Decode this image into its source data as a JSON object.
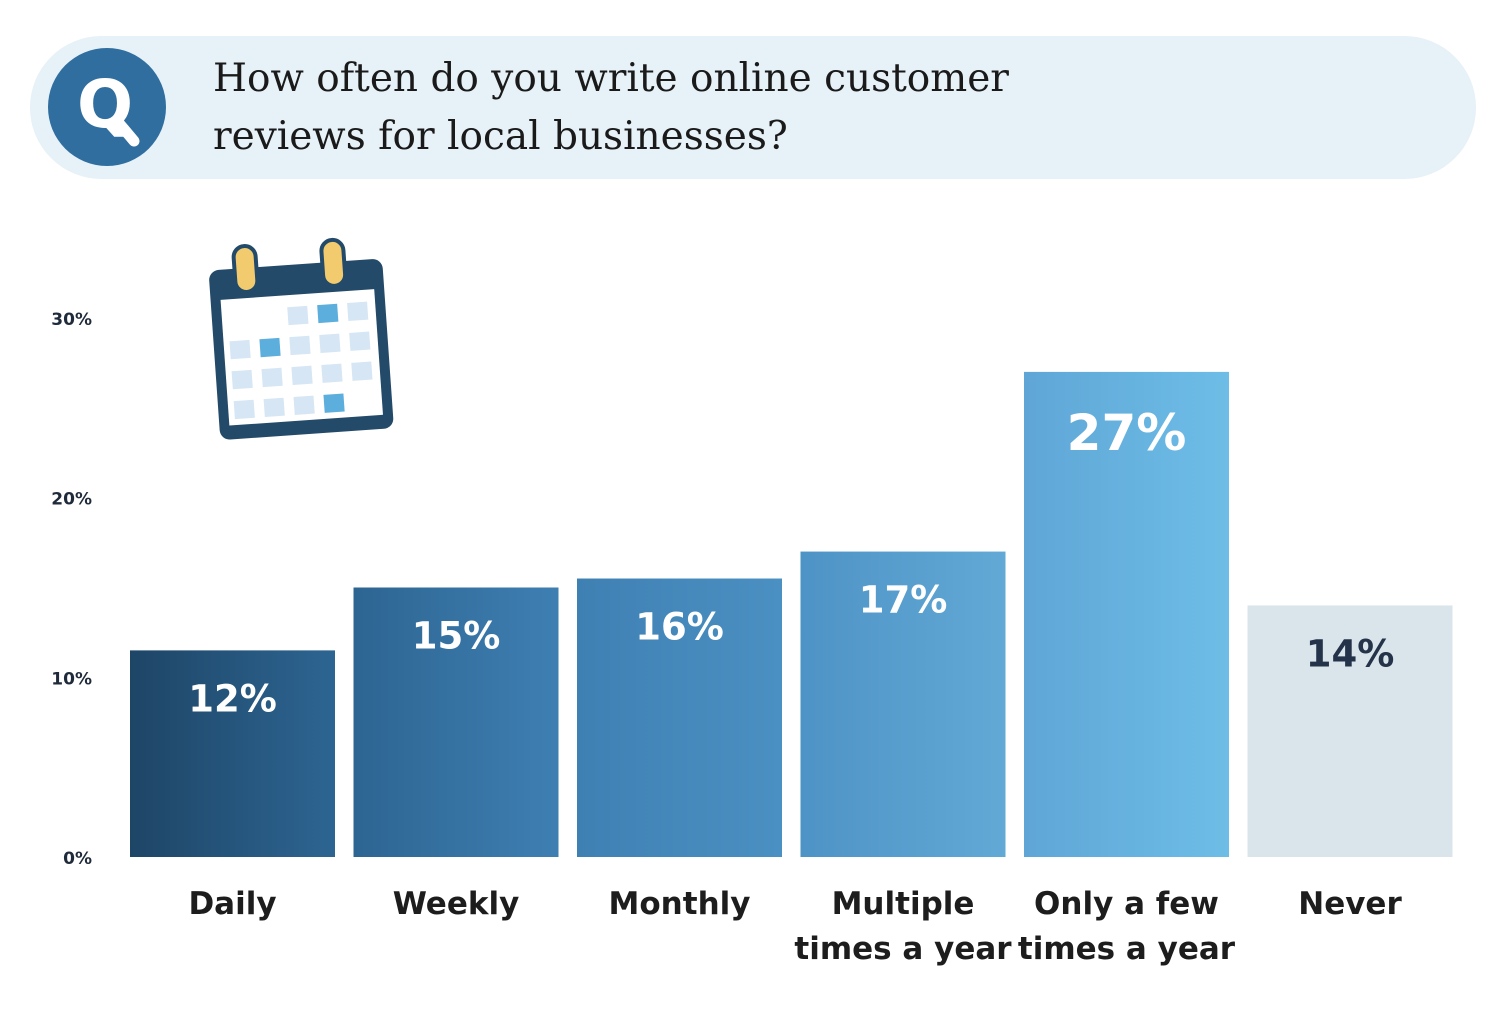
{
  "question": {
    "badge_letter": "Q",
    "lines": [
      "How often do you write online customer",
      "reviews for local businesses?"
    ]
  },
  "icons": {
    "badge": "q-badge-icon",
    "calendar": "calendar-icon"
  },
  "colors": {
    "question_bg": "#e6f1f8",
    "badge": "#2f6e9e",
    "bar_gradient": [
      [
        "#1e4566",
        "#2d6592"
      ],
      [
        "#2d6592",
        "#3e7fb2"
      ],
      [
        "#3f80b3",
        "#4b90c2"
      ],
      [
        "#4e93c5",
        "#62a9d6"
      ],
      [
        "#5fa6d6",
        "#6dbde7"
      ],
      [
        "#d9e4eb",
        "#d9e4eb"
      ]
    ],
    "value_label": [
      "#ffffff",
      "#ffffff",
      "#ffffff",
      "#ffffff",
      "#ffffff",
      "#24324a"
    ]
  },
  "chart_data": {
    "type": "bar",
    "title": "",
    "xlabel": "",
    "ylabel": "",
    "ylim": [
      0,
      30
    ],
    "yticks": [
      "0%",
      "10%",
      "20%",
      "30%"
    ],
    "grid": false,
    "categories": [
      [
        "Daily"
      ],
      [
        "Weekly"
      ],
      [
        "Monthly"
      ],
      [
        "Multiple",
        "times a year"
      ],
      [
        "Only a few",
        "times a year"
      ],
      [
        "Never"
      ]
    ],
    "values": [
      11.5,
      15,
      15.5,
      17,
      27,
      14.0
    ],
    "value_labels": [
      "12%",
      "15%",
      "16%",
      "17%",
      "27%",
      "14%"
    ]
  }
}
